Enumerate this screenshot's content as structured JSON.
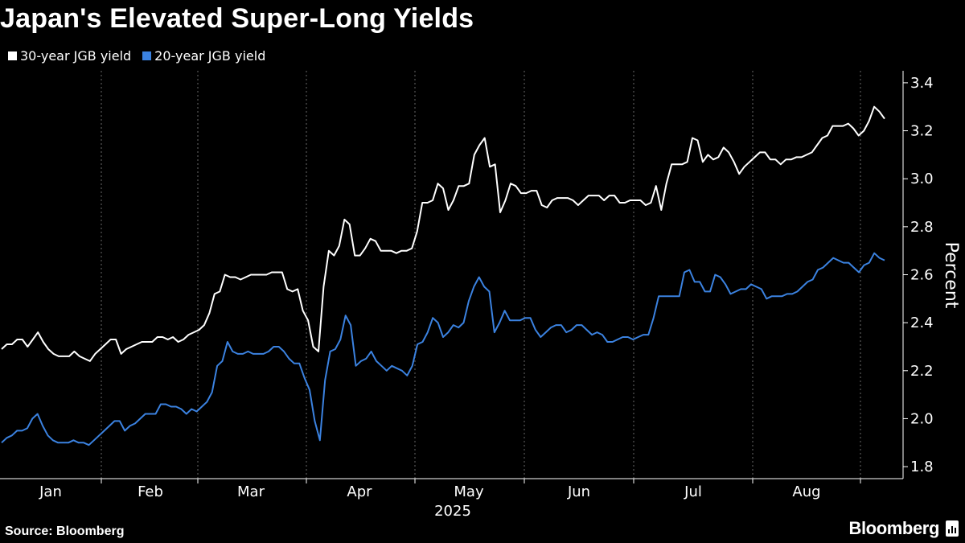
{
  "title": "Japan's Elevated Super-Long Yields",
  "source": "Source: Bloomberg",
  "brand": "Bloomberg",
  "colors": {
    "background": "#000000",
    "series_30y": "#ffffff",
    "series_20y": "#3b82e0",
    "grid": "#6a6a6a"
  },
  "chart_data": {
    "type": "line",
    "ylabel": "Percent",
    "xlabel": "",
    "year_label": "2025",
    "ylim": [
      1.75,
      3.45
    ],
    "y_ticks": [
      "1.8",
      "2.0",
      "2.2",
      "2.4",
      "2.6",
      "2.8",
      "3.0",
      "3.2",
      "3.4"
    ],
    "month_labels": [
      "Jan",
      "Feb",
      "Mar",
      "Apr",
      "May",
      "Jun",
      "Jul",
      "Aug"
    ],
    "grid": "dotted vertical month separators",
    "legend": "top-left",
    "series": [
      {
        "name": "30-year JGB yield",
        "color": "#ffffff",
        "values": [
          2.29,
          2.31,
          2.31,
          2.33,
          2.33,
          2.3,
          2.33,
          2.36,
          2.32,
          2.29,
          2.27,
          2.26,
          2.26,
          2.26,
          2.28,
          2.26,
          2.25,
          2.24,
          2.27,
          2.29,
          2.31,
          2.33,
          2.33,
          2.27,
          2.29,
          2.3,
          2.31,
          2.32,
          2.32,
          2.32,
          2.34,
          2.34,
          2.33,
          2.34,
          2.32,
          2.33,
          2.35,
          2.36,
          2.37,
          2.39,
          2.44,
          2.52,
          2.53,
          2.6,
          2.59,
          2.59,
          2.58,
          2.59,
          2.6,
          2.6,
          2.6,
          2.6,
          2.61,
          2.61,
          2.61,
          2.54,
          2.53,
          2.54,
          2.45,
          2.41,
          2.3,
          2.28,
          2.55,
          2.7,
          2.68,
          2.72,
          2.83,
          2.81,
          2.68,
          2.68,
          2.71,
          2.75,
          2.74,
          2.7,
          2.7,
          2.7,
          2.69,
          2.7,
          2.7,
          2.71,
          2.78,
          2.9,
          2.9,
          2.91,
          2.98,
          2.96,
          2.87,
          2.91,
          2.97,
          2.97,
          2.98,
          3.1,
          3.14,
          3.17,
          3.05,
          3.06,
          2.86,
          2.91,
          2.98,
          2.97,
          2.94,
          2.94,
          2.95,
          2.95,
          2.89,
          2.88,
          2.91,
          2.92,
          2.92,
          2.92,
          2.91,
          2.89,
          2.91,
          2.93,
          2.93,
          2.93,
          2.91,
          2.93,
          2.93,
          2.9,
          2.9,
          2.91,
          2.91,
          2.91,
          2.89,
          2.9,
          2.97,
          2.87,
          2.98,
          3.06,
          3.06,
          3.06,
          3.07,
          3.17,
          3.16,
          3.07,
          3.1,
          3.08,
          3.09,
          3.13,
          3.11,
          3.07,
          3.02,
          3.05,
          3.07,
          3.09,
          3.11,
          3.11,
          3.08,
          3.08,
          3.06,
          3.08,
          3.08,
          3.09,
          3.09,
          3.1,
          3.11,
          3.14,
          3.17,
          3.18,
          3.22,
          3.22,
          3.22,
          3.23,
          3.21,
          3.18,
          3.2,
          3.24,
          3.3,
          3.28,
          3.25
        ]
      },
      {
        "name": "20-year JGB yield",
        "color": "#3b82e0",
        "values": [
          1.9,
          1.92,
          1.93,
          1.95,
          1.95,
          1.96,
          2.0,
          2.02,
          1.97,
          1.93,
          1.91,
          1.9,
          1.9,
          1.9,
          1.91,
          1.9,
          1.9,
          1.89,
          1.91,
          1.93,
          1.95,
          1.97,
          1.99,
          1.99,
          1.95,
          1.97,
          1.98,
          2.0,
          2.02,
          2.02,
          2.02,
          2.06,
          2.06,
          2.05,
          2.05,
          2.04,
          2.02,
          2.04,
          2.03,
          2.05,
          2.07,
          2.11,
          2.22,
          2.24,
          2.32,
          2.28,
          2.27,
          2.27,
          2.28,
          2.27,
          2.27,
          2.27,
          2.28,
          2.3,
          2.3,
          2.28,
          2.25,
          2.23,
          2.23,
          2.17,
          2.12,
          1.99,
          1.91,
          2.16,
          2.28,
          2.29,
          2.33,
          2.43,
          2.39,
          2.22,
          2.24,
          2.25,
          2.28,
          2.24,
          2.22,
          2.2,
          2.22,
          2.21,
          2.2,
          2.18,
          2.22,
          2.31,
          2.32,
          2.36,
          2.42,
          2.4,
          2.34,
          2.36,
          2.39,
          2.38,
          2.4,
          2.49,
          2.55,
          2.59,
          2.55,
          2.53,
          2.36,
          2.4,
          2.45,
          2.41,
          2.41,
          2.41,
          2.42,
          2.42,
          2.37,
          2.34,
          2.36,
          2.38,
          2.39,
          2.39,
          2.36,
          2.37,
          2.39,
          2.39,
          2.37,
          2.35,
          2.36,
          2.35,
          2.32,
          2.32,
          2.33,
          2.34,
          2.34,
          2.33,
          2.34,
          2.35,
          2.35,
          2.42,
          2.51,
          2.51,
          2.51,
          2.51,
          2.51,
          2.61,
          2.62,
          2.57,
          2.57,
          2.53,
          2.53,
          2.6,
          2.59,
          2.56,
          2.52,
          2.53,
          2.54,
          2.54,
          2.56,
          2.55,
          2.54,
          2.5,
          2.51,
          2.51,
          2.51,
          2.52,
          2.52,
          2.53,
          2.55,
          2.57,
          2.58,
          2.62,
          2.63,
          2.65,
          2.67,
          2.66,
          2.65,
          2.65,
          2.63,
          2.61,
          2.64,
          2.65,
          2.69,
          2.67,
          2.66
        ]
      }
    ]
  }
}
